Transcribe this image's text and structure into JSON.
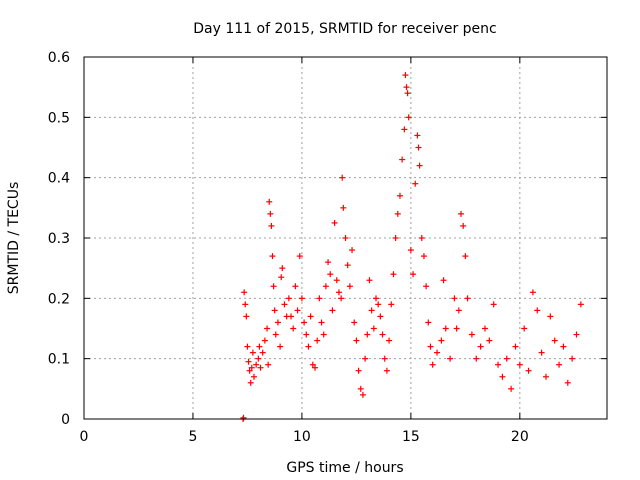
{
  "chart_data": {
    "type": "scatter",
    "title": "Day 111 of 2015, SRMTID for receiver penc",
    "xlabel": "GPS time / hours",
    "ylabel": "SRMTID / TECUs",
    "xlim": [
      0,
      24
    ],
    "ylim": [
      0,
      0.6
    ],
    "xticks": [
      0,
      5,
      10,
      15,
      20
    ],
    "yticks": [
      0,
      0.1,
      0.2,
      0.3,
      0.4,
      0.5,
      0.6
    ],
    "ytick_labels": [
      "0",
      "0.1",
      "0.2",
      "0.3",
      "0.4",
      "0.5",
      "0.6"
    ],
    "grid": true,
    "marker": "+",
    "color": "#ff0000",
    "series": [
      {
        "name": "penc",
        "points": [
          [
            7.3,
            0.0
          ],
          [
            7.32,
            0.002
          ],
          [
            7.35,
            0.21
          ],
          [
            7.4,
            0.19
          ],
          [
            7.45,
            0.17
          ],
          [
            7.5,
            0.12
          ],
          [
            7.55,
            0.095
          ],
          [
            7.6,
            0.08
          ],
          [
            7.65,
            0.06
          ],
          [
            7.7,
            0.085
          ],
          [
            7.75,
            0.11
          ],
          [
            7.8,
            0.07
          ],
          [
            7.9,
            0.09
          ],
          [
            8.0,
            0.1
          ],
          [
            8.05,
            0.12
          ],
          [
            8.1,
            0.085
          ],
          [
            8.2,
            0.11
          ],
          [
            8.3,
            0.13
          ],
          [
            8.4,
            0.15
          ],
          [
            8.45,
            0.09
          ],
          [
            8.5,
            0.36
          ],
          [
            8.55,
            0.34
          ],
          [
            8.6,
            0.32
          ],
          [
            8.65,
            0.27
          ],
          [
            8.7,
            0.22
          ],
          [
            8.75,
            0.18
          ],
          [
            8.8,
            0.14
          ],
          [
            8.9,
            0.16
          ],
          [
            9.0,
            0.12
          ],
          [
            9.05,
            0.235
          ],
          [
            9.1,
            0.25
          ],
          [
            9.2,
            0.19
          ],
          [
            9.3,
            0.17
          ],
          [
            9.4,
            0.2
          ],
          [
            9.5,
            0.17
          ],
          [
            9.6,
            0.15
          ],
          [
            9.7,
            0.22
          ],
          [
            9.8,
            0.18
          ],
          [
            9.9,
            0.27
          ],
          [
            10.0,
            0.2
          ],
          [
            10.1,
            0.16
          ],
          [
            10.2,
            0.14
          ],
          [
            10.3,
            0.12
          ],
          [
            10.4,
            0.17
          ],
          [
            10.5,
            0.09
          ],
          [
            10.6,
            0.085
          ],
          [
            10.7,
            0.13
          ],
          [
            10.8,
            0.2
          ],
          [
            10.9,
            0.16
          ],
          [
            11.0,
            0.14
          ],
          [
            11.1,
            0.22
          ],
          [
            11.2,
            0.26
          ],
          [
            11.3,
            0.24
          ],
          [
            11.4,
            0.18
          ],
          [
            11.5,
            0.325
          ],
          [
            11.6,
            0.23
          ],
          [
            11.7,
            0.21
          ],
          [
            11.8,
            0.2
          ],
          [
            11.85,
            0.4
          ],
          [
            11.9,
            0.35
          ],
          [
            12.0,
            0.3
          ],
          [
            12.1,
            0.255
          ],
          [
            12.2,
            0.22
          ],
          [
            12.3,
            0.28
          ],
          [
            12.4,
            0.16
          ],
          [
            12.5,
            0.13
          ],
          [
            12.6,
            0.08
          ],
          [
            12.7,
            0.05
          ],
          [
            12.8,
            0.04
          ],
          [
            12.9,
            0.1
          ],
          [
            13.0,
            0.14
          ],
          [
            13.1,
            0.23
          ],
          [
            13.2,
            0.18
          ],
          [
            13.3,
            0.15
          ],
          [
            13.4,
            0.2
          ],
          [
            13.5,
            0.19
          ],
          [
            13.6,
            0.17
          ],
          [
            13.7,
            0.14
          ],
          [
            13.8,
            0.1
          ],
          [
            13.9,
            0.08
          ],
          [
            14.0,
            0.13
          ],
          [
            14.1,
            0.19
          ],
          [
            14.2,
            0.24
          ],
          [
            14.3,
            0.3
          ],
          [
            14.4,
            0.34
          ],
          [
            14.5,
            0.37
          ],
          [
            14.6,
            0.43
          ],
          [
            14.7,
            0.48
          ],
          [
            14.75,
            0.57
          ],
          [
            14.8,
            0.55
          ],
          [
            14.85,
            0.54
          ],
          [
            14.9,
            0.5
          ],
          [
            15.0,
            0.28
          ],
          [
            15.1,
            0.24
          ],
          [
            15.2,
            0.39
          ],
          [
            15.3,
            0.47
          ],
          [
            15.35,
            0.45
          ],
          [
            15.4,
            0.42
          ],
          [
            15.5,
            0.3
          ],
          [
            15.6,
            0.27
          ],
          [
            15.7,
            0.22
          ],
          [
            15.8,
            0.16
          ],
          [
            15.9,
            0.12
          ],
          [
            16.0,
            0.09
          ],
          [
            16.2,
            0.11
          ],
          [
            16.4,
            0.13
          ],
          [
            16.5,
            0.23
          ],
          [
            16.6,
            0.15
          ],
          [
            16.8,
            0.1
          ],
          [
            17.0,
            0.2
          ],
          [
            17.1,
            0.15
          ],
          [
            17.2,
            0.18
          ],
          [
            17.3,
            0.34
          ],
          [
            17.4,
            0.32
          ],
          [
            17.5,
            0.27
          ],
          [
            17.6,
            0.2
          ],
          [
            17.8,
            0.14
          ],
          [
            18.0,
            0.1
          ],
          [
            18.2,
            0.12
          ],
          [
            18.4,
            0.15
          ],
          [
            18.6,
            0.13
          ],
          [
            18.8,
            0.19
          ],
          [
            19.0,
            0.09
          ],
          [
            19.2,
            0.07
          ],
          [
            19.4,
            0.1
          ],
          [
            19.6,
            0.05
          ],
          [
            19.8,
            0.12
          ],
          [
            20.0,
            0.09
          ],
          [
            20.2,
            0.15
          ],
          [
            20.4,
            0.08
          ],
          [
            20.6,
            0.21
          ],
          [
            20.8,
            0.18
          ],
          [
            21.0,
            0.11
          ],
          [
            21.2,
            0.07
          ],
          [
            21.4,
            0.17
          ],
          [
            21.6,
            0.13
          ],
          [
            21.8,
            0.09
          ],
          [
            22.0,
            0.12
          ],
          [
            22.2,
            0.06
          ],
          [
            22.4,
            0.1
          ],
          [
            22.6,
            0.14
          ],
          [
            22.8,
            0.19
          ]
        ]
      }
    ]
  }
}
